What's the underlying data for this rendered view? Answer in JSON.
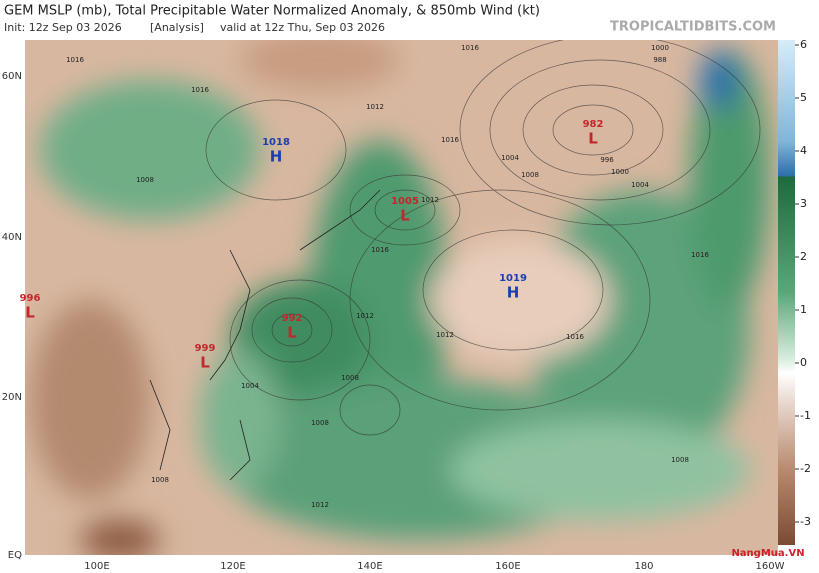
{
  "header": {
    "title": "GEM MSLP (mb), Total Precipitable Water Normalized Anomaly, & 850mb Wind (kt)",
    "init": "Init: 12z Sep 03 2026",
    "analysis": "[Analysis]",
    "valid": "valid at 12z Thu, Sep 03 2026",
    "source": "TROPICALTIDBITS.COM"
  },
  "map": {
    "lat_labels": [
      "60N",
      "40N",
      "20N",
      "EQ"
    ],
    "lon_labels": [
      "100E",
      "120E",
      "140E",
      "160E",
      "180",
      "160W"
    ],
    "centers": [
      {
        "value": "1018",
        "letter": "H"
      },
      {
        "value": "982",
        "letter": "L"
      },
      {
        "value": "1005",
        "letter": "L"
      },
      {
        "value": "1019",
        "letter": "H"
      },
      {
        "value": "996",
        "letter": "L"
      },
      {
        "value": "992",
        "letter": "L"
      },
      {
        "value": "999",
        "letter": "L"
      }
    ],
    "isobar_labels": [
      "1016",
      "1016",
      "1012",
      "1008",
      "1004",
      "1000",
      "996",
      "988",
      "1004",
      "1008",
      "1012",
      "1016",
      "1016",
      "1012",
      "1008",
      "1004",
      "1008",
      "1012",
      "1008",
      "1016",
      "1012",
      "1016",
      "1016",
      "1000",
      "1008"
    ],
    "watermark": "NangMua.VN"
  },
  "colorbar": {
    "ticks": [
      6,
      5,
      4,
      3,
      2,
      1,
      0,
      -1,
      -2,
      -3
    ]
  }
}
